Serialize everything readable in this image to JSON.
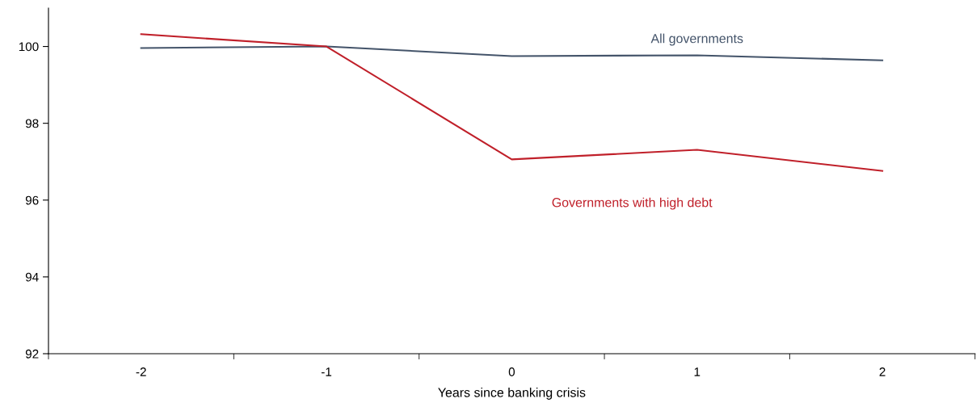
{
  "chart_data": {
    "type": "line",
    "xlabel": "Years since banking crisis",
    "categories": [
      "-2",
      "-1",
      "0",
      "1",
      "2"
    ],
    "series": [
      {
        "name": "All governments",
        "color": "#44546a",
        "values": [
          99.96,
          100.0,
          99.75,
          99.77,
          99.64
        ]
      },
      {
        "name": "Governments with high debt",
        "color": "#c0202a",
        "values": [
          100.32,
          100.0,
          97.06,
          97.31,
          96.76
        ]
      }
    ],
    "ylim": [
      92,
      101
    ],
    "yticks": [
      92,
      94,
      96,
      98,
      100
    ],
    "grid": false,
    "legend": false,
    "marker": "none",
    "line_style": "solid"
  }
}
